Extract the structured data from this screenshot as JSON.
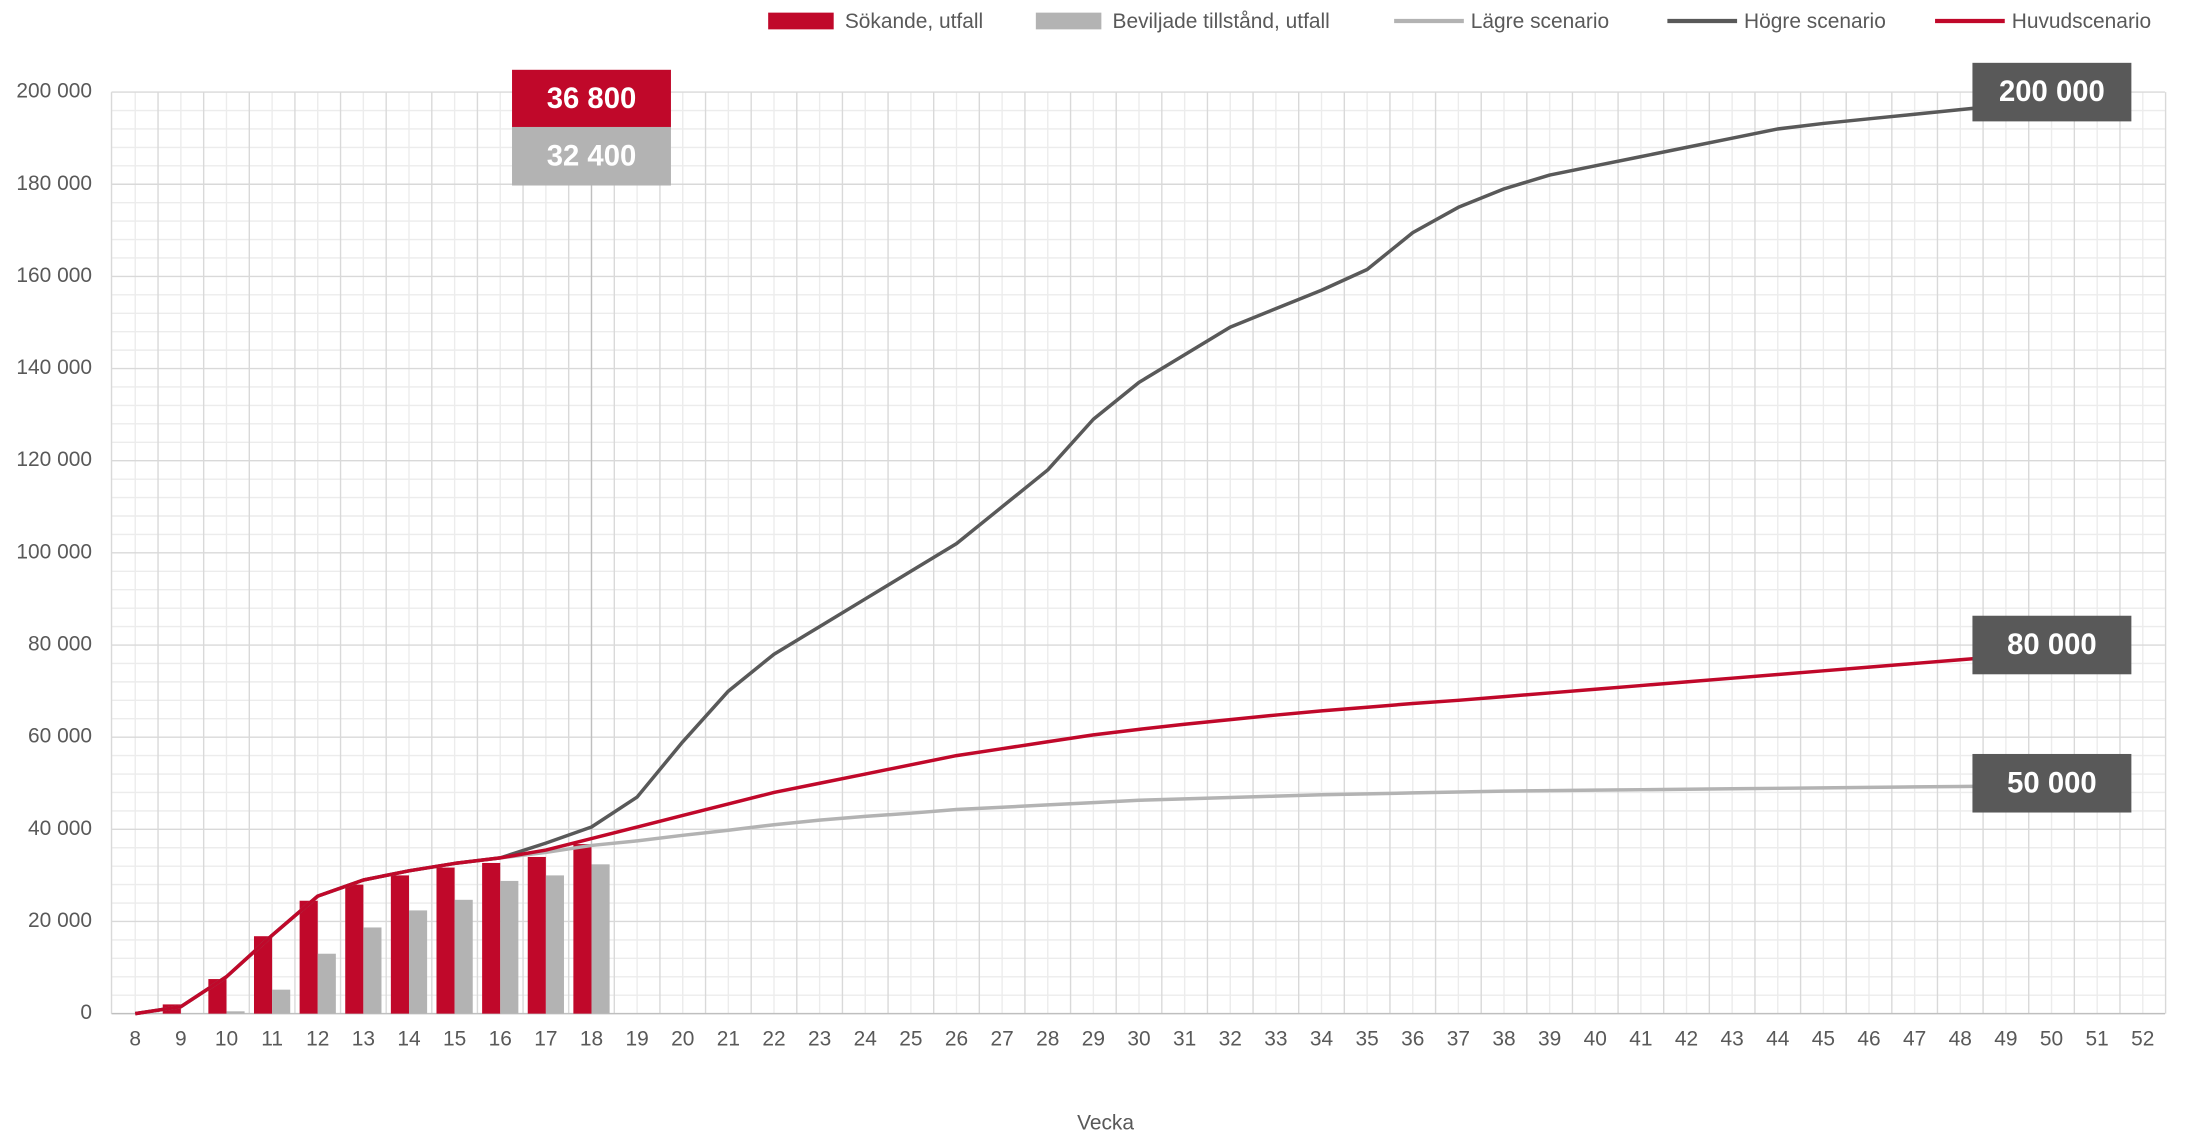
{
  "chart_data": {
    "type": "combo",
    "x_label": "Vecka",
    "categories": [
      "8",
      "9",
      "10",
      "11",
      "12",
      "13",
      "14",
      "15",
      "16",
      "17",
      "18",
      "19",
      "20",
      "21",
      "22",
      "23",
      "24",
      "25",
      "26",
      "27",
      "28",
      "29",
      "30",
      "31",
      "32",
      "33",
      "34",
      "35",
      "36",
      "37",
      "38",
      "39",
      "40",
      "41",
      "42",
      "43",
      "44",
      "45",
      "46",
      "47",
      "48",
      "49",
      "50",
      "51",
      "52"
    ],
    "ylim": [
      0,
      200000
    ],
    "yticks": [
      {
        "value": 0,
        "label": "0"
      },
      {
        "value": 20000,
        "label": "20 000"
      },
      {
        "value": 40000,
        "label": "40 000"
      },
      {
        "value": 60000,
        "label": "60 000"
      },
      {
        "value": 80000,
        "label": "80 000"
      },
      {
        "value": 100000,
        "label": "100 000"
      },
      {
        "value": 120000,
        "label": "120 000"
      },
      {
        "value": 140000,
        "label": "140 000"
      },
      {
        "value": 160000,
        "label": "160 000"
      },
      {
        "value": 180000,
        "label": "180 000"
      },
      {
        "value": 200000,
        "label": "200 000"
      }
    ],
    "grid": true,
    "legend": "top-right",
    "series": [
      {
        "name": "Sökande, utfall",
        "type": "bar",
        "color": "#c0082a",
        "values": [
          null,
          2000,
          7500,
          16800,
          24500,
          28000,
          30000,
          31700,
          32700,
          34000,
          36800,
          null,
          null,
          null,
          null,
          null,
          null,
          null,
          null,
          null,
          null,
          null,
          null,
          null,
          null,
          null,
          null,
          null,
          null,
          null,
          null,
          null,
          null,
          null,
          null,
          null,
          null,
          null,
          null,
          null,
          null,
          null,
          null,
          null,
          null
        ]
      },
      {
        "name": "Beviljade tillstånd, utfall",
        "type": "bar",
        "color": "#b3b3b3",
        "values": [
          null,
          null,
          500,
          5200,
          13000,
          18700,
          22400,
          24700,
          28800,
          30000,
          32400,
          null,
          null,
          null,
          null,
          null,
          null,
          null,
          null,
          null,
          null,
          null,
          null,
          null,
          null,
          null,
          null,
          null,
          null,
          null,
          null,
          null,
          null,
          null,
          null,
          null,
          null,
          null,
          null,
          null,
          null,
          null,
          null,
          null,
          null
        ]
      },
      {
        "name": "Lägre scenario",
        "type": "line",
        "color": "#b3b3b3",
        "values": [
          0,
          1500,
          8000,
          17000,
          25500,
          29000,
          31000,
          32600,
          33800,
          35000,
          36500,
          37500,
          38700,
          39800,
          41000,
          42000,
          42800,
          43500,
          44300,
          44800,
          45300,
          45800,
          46300,
          46600,
          46900,
          47200,
          47500,
          47700,
          47900,
          48100,
          48300,
          48400,
          48500,
          48600,
          48700,
          48800,
          48900,
          49000,
          49100,
          49200,
          49300,
          49400,
          null,
          null,
          null
        ]
      },
      {
        "name": "Högre scenario",
        "type": "line",
        "color": "#595959",
        "values": [
          0,
          1500,
          8000,
          17000,
          25500,
          29000,
          31000,
          32600,
          33800,
          37000,
          40500,
          47000,
          59000,
          70000,
          78000,
          84000,
          90000,
          96000,
          102000,
          110000,
          118000,
          129000,
          137000,
          143000,
          149000,
          153000,
          157000,
          161500,
          169500,
          175000,
          179000,
          182000,
          184000,
          186000,
          188000,
          190000,
          192000,
          193200,
          194200,
          195200,
          196200,
          197200,
          null,
          null,
          null
        ]
      },
      {
        "name": "Huvudscenario",
        "type": "line",
        "color": "#c0082a",
        "values": [
          0,
          1500,
          8000,
          17000,
          25500,
          29000,
          31000,
          32600,
          33800,
          35500,
          38000,
          40500,
          43000,
          45500,
          48000,
          50000,
          52000,
          54000,
          56000,
          57500,
          59000,
          60500,
          61700,
          62800,
          63800,
          64800,
          65700,
          66500,
          67300,
          68000,
          68800,
          69600,
          70400,
          71200,
          72000,
          72800,
          73600,
          74400,
          75200,
          76000,
          76800,
          77600,
          null,
          null,
          null
        ]
      }
    ],
    "annotations": [
      {
        "text": "36 800",
        "value": 36800,
        "x": "18",
        "color": "#c0082a",
        "position": "top"
      },
      {
        "text": "32 400",
        "value": 32400,
        "x": "18",
        "color": "#b3b3b3",
        "position": "top"
      },
      {
        "text": "200 000",
        "value": 200000,
        "x": "49",
        "color": "#595959",
        "position": "end"
      },
      {
        "text": "80 000",
        "value": 80000,
        "x": "49",
        "color": "#595959",
        "position": "end"
      },
      {
        "text": "50 000",
        "value": 50000,
        "x": "49",
        "color": "#595959",
        "position": "end"
      }
    ]
  }
}
